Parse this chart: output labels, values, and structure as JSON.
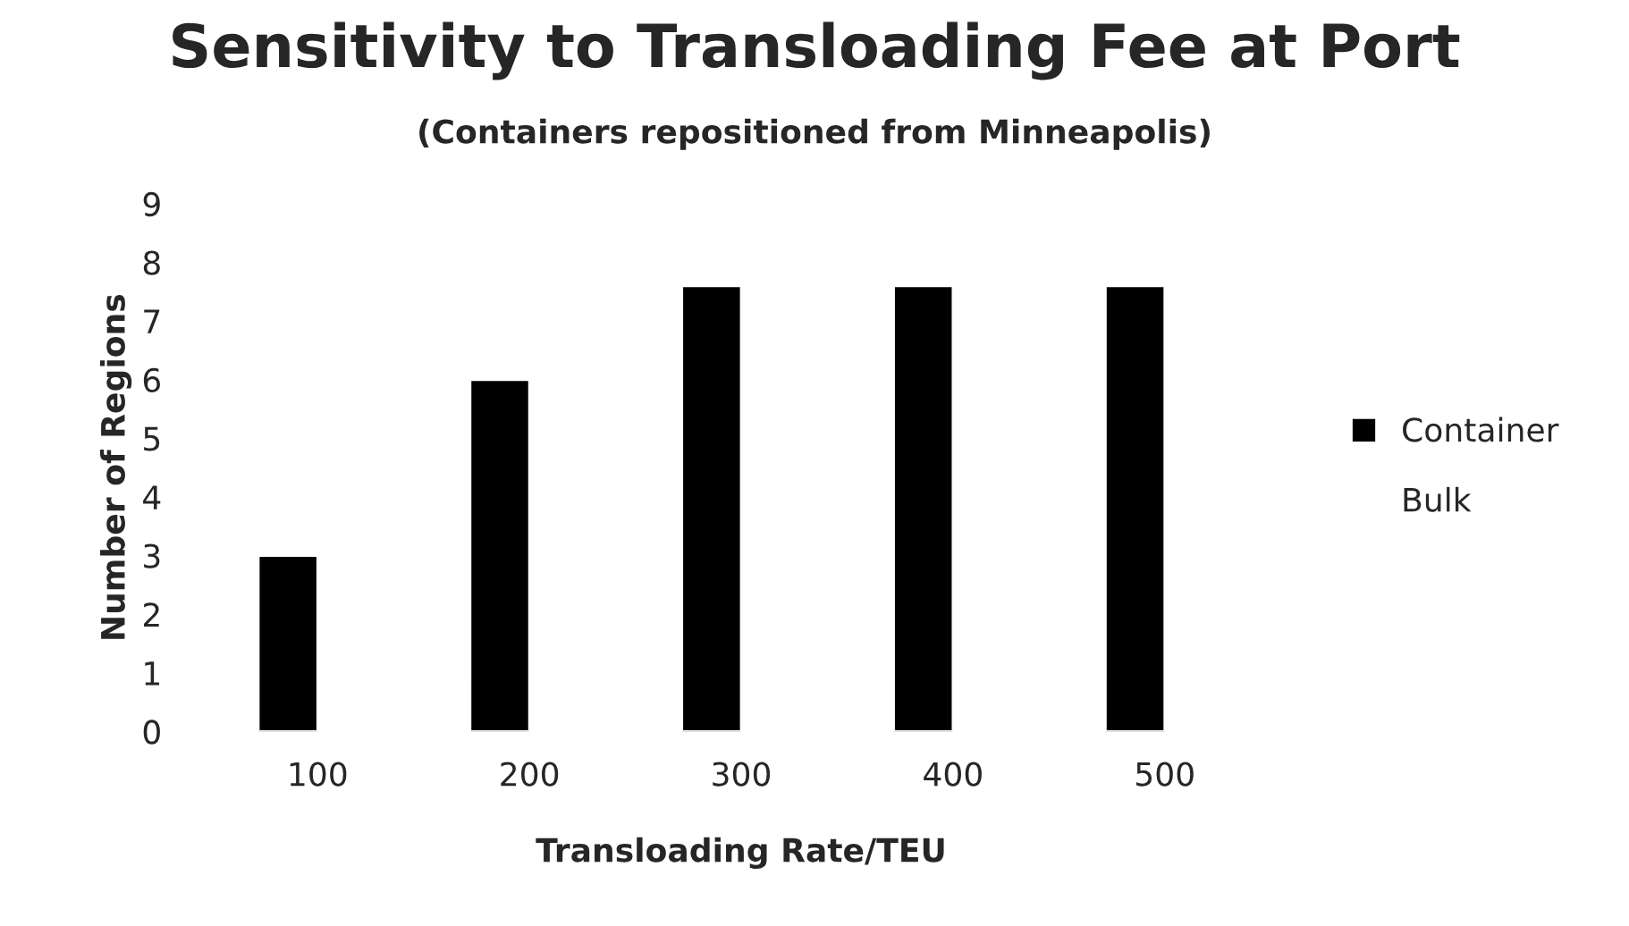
{
  "chart_data": {
    "type": "bar",
    "title": "Sensitivity to Transloading Fee at Port",
    "subtitle": "(Containers repositioned from Minneapolis)",
    "xlabel": "Transloading Rate/TEU",
    "ylabel": "Number of Regions",
    "categories": [
      "100",
      "200",
      "300",
      "400",
      "500"
    ],
    "series": [
      {
        "name": "Container",
        "color": "#000000",
        "values": [
          3,
          6,
          7.6,
          7.6,
          7.6
        ]
      },
      {
        "name": "Bulk",
        "values": [
          null,
          null,
          null,
          null,
          null
        ]
      }
    ],
    "ylim": [
      0,
      9
    ],
    "yticks": [
      0,
      1,
      2,
      3,
      4,
      5,
      6,
      7,
      8,
      9
    ],
    "grid": false,
    "legend": "right"
  }
}
